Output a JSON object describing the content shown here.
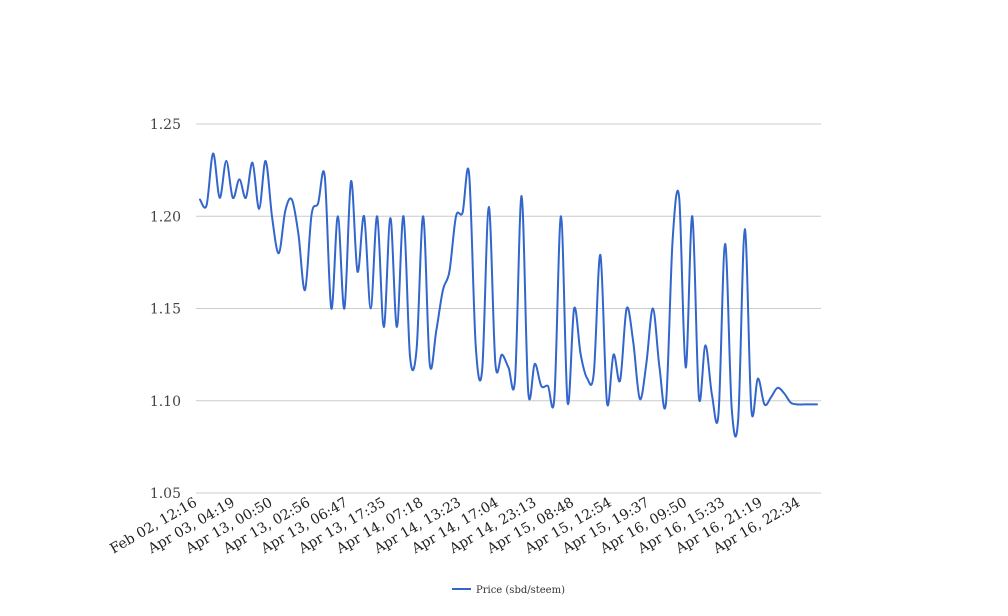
{
  "chart_data": {
    "type": "line",
    "title": "",
    "xlabel": "",
    "ylabel": "",
    "ylim": [
      1.05,
      1.25
    ],
    "yticks": [
      "1.05",
      "1.10",
      "1.15",
      "1.20",
      "1.25"
    ],
    "grid": true,
    "legend_position": "bottom-center",
    "x_tick_labels": [
      "Feb 02, 12:16",
      "Apr 03, 04:19",
      "Apr 13, 00:50",
      "Apr 13, 02:56",
      "Apr 13, 06:47",
      "Apr 13, 17:35",
      "Apr 14, 07:18",
      "Apr 14, 13:23",
      "Apr 14, 17:04",
      "Apr 14, 23:13",
      "Apr 15, 08:48",
      "Apr 15, 12:54",
      "Apr 15, 19:37",
      "Apr 16, 09:50",
      "Apr 16, 15:33",
      "Apr 16, 21:19",
      "Apr 16, 22:34"
    ],
    "series": [
      {
        "name": "Price (sbd/steem)",
        "color": "#3366cc",
        "values": [
          1.209,
          1.206,
          1.234,
          1.21,
          1.23,
          1.21,
          1.22,
          1.21,
          1.229,
          1.204,
          1.23,
          1.199,
          1.18,
          1.203,
          1.209,
          1.19,
          1.16,
          1.201,
          1.207,
          1.222,
          1.15,
          1.2,
          1.15,
          1.219,
          1.17,
          1.2,
          1.15,
          1.2,
          1.14,
          1.199,
          1.14,
          1.2,
          1.124,
          1.128,
          1.2,
          1.12,
          1.138,
          1.16,
          1.17,
          1.2,
          1.202,
          1.223,
          1.13,
          1.117,
          1.205,
          1.12,
          1.125,
          1.118,
          1.112,
          1.211,
          1.105,
          1.12,
          1.108,
          1.108,
          1.102,
          1.2,
          1.099,
          1.15,
          1.125,
          1.112,
          1.115,
          1.179,
          1.099,
          1.125,
          1.111,
          1.15,
          1.132,
          1.101,
          1.12,
          1.15,
          1.118,
          1.099,
          1.187,
          1.21,
          1.118,
          1.2,
          1.102,
          1.13,
          1.103,
          1.093,
          1.185,
          1.096,
          1.09,
          1.193,
          1.095,
          1.112,
          1.098,
          1.102,
          1.107,
          1.104,
          1.099,
          1.098,
          1.098,
          1.098,
          1.098
        ]
      }
    ]
  },
  "legend": {
    "label": "Price (sbd/steem)",
    "color": "#3366cc"
  }
}
